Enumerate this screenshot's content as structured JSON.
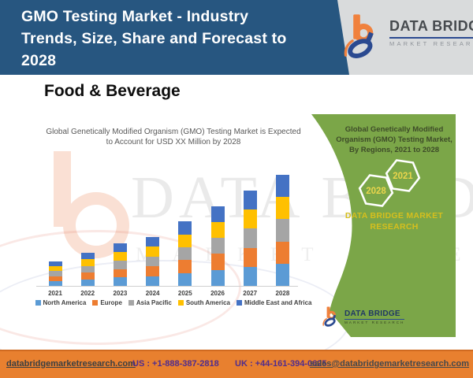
{
  "header": {
    "title": "GMO Testing Market - Industry Trends, Size, Share and Forecast to 2028",
    "brand": {
      "name": "DATA BRIDGE",
      "tagline": "MARKET RESEARCH"
    }
  },
  "section": {
    "title": "Food & Beverage"
  },
  "chart_data": {
    "type": "bar",
    "stacked": true,
    "title": "Global Genetically Modified Organism (GMO) Testing Market is Expected to Account for USD XX Million by 2028",
    "title_lines": [
      "Global Genetically Modified Organism (GMO) Testing Market is Expected",
      "to Account for USD XX Million by 2028"
    ],
    "categories": [
      "2021",
      "2022",
      "2023",
      "2024",
      "2025",
      "2026",
      "2027",
      "2028"
    ],
    "series": [
      {
        "name": "North America",
        "color": "#5B9BD5",
        "values": [
          4.4,
          6,
          7.6,
          8.8,
          11.6,
          14.4,
          17.2,
          20
        ]
      },
      {
        "name": "Europe",
        "color": "#ED7D31",
        "values": [
          4.4,
          6,
          7.6,
          8.8,
          11.6,
          14.4,
          17.2,
          20
        ]
      },
      {
        "name": "Asia Pacific",
        "color": "#A5A5A5",
        "values": [
          4.4,
          6,
          7.6,
          8.8,
          11.6,
          14.4,
          17.2,
          20
        ]
      },
      {
        "name": "South America",
        "color": "#FFC000",
        "values": [
          4.4,
          6,
          7.6,
          8.8,
          11.6,
          14.4,
          17.2,
          20
        ]
      },
      {
        "name": "Middle East and Africa",
        "color": "#4472C4",
        "values": [
          4.4,
          6,
          7.6,
          8.8,
          11.6,
          14.4,
          17.2,
          20
        ]
      }
    ],
    "totals_relative": [
      22,
      30,
      38,
      44,
      58,
      72,
      86,
      100
    ],
    "ylim": [
      0,
      100
    ],
    "y_axis_visible": false,
    "grid": false,
    "legend_position": "bottom",
    "values_note": "Relative stacked heights estimated from pixels; actual USD values shown only as XX Million"
  },
  "side_panel": {
    "heading": "Global Genetically Modified Organism (GMO) Testing Market, By Regions, 2021 to 2028",
    "heading_lines": [
      "Global Genetically Modified",
      "Organism (GMO) Testing Market,",
      "By Regions, 2021 to 2028"
    ],
    "hexagons": [
      "2028",
      "2021"
    ],
    "brand_lines": [
      "DATA BRIDGE MARKET",
      "RESEARCH"
    ],
    "logo": {
      "name": "DATA BRIDGE",
      "tagline": "MARKET RESEARCH"
    }
  },
  "watermark": {
    "line1": "DATA BRIDGE",
    "line2": "MARKET RESEARCH"
  },
  "footer": {
    "website": "databridgemarketresearch.com",
    "us_phone": "US : +1-888-387-2818",
    "uk_phone": "UK : +44-161-394-0625",
    "email": "sales@databridgemarketresearch.com"
  },
  "colors": {
    "header_bg": "#275680",
    "header_logo_area_bg": "#D9DBDC",
    "panel_green": "#7BA648",
    "panel_heading_text": "#3D4B28",
    "panel_brand_gold": "#D6BF1D",
    "hexagon_number": "#EAD54C",
    "footer_bg": "#E8802F",
    "footer_phone": "#4F2D8E",
    "footer_link": "#3B3F42",
    "chart_title_text": "#595959",
    "logo_orange": "#F0813D",
    "logo_blue": "#2B4A90"
  }
}
